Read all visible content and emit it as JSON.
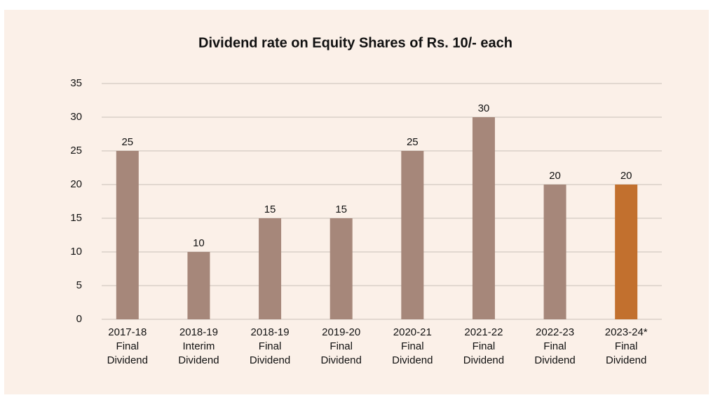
{
  "chart_data": {
    "type": "bar",
    "title": "Dividend rate on Equity Shares of Rs. 10/- each",
    "categories": [
      [
        "2017-18",
        "Final",
        "Dividend"
      ],
      [
        "2018-19",
        "Interim",
        "Dividend"
      ],
      [
        "2018-19",
        "Final",
        "Dividend"
      ],
      [
        "2019-20",
        "Final",
        "Dividend"
      ],
      [
        "2020-21",
        "Final",
        "Dividend"
      ],
      [
        "2021-22",
        "Final",
        "Dividend"
      ],
      [
        "2022-23",
        "Final",
        "Dividend"
      ],
      [
        "2023-24*",
        "Final",
        "Dividend"
      ]
    ],
    "values": [
      25,
      10,
      15,
      15,
      25,
      30,
      20,
      20
    ],
    "colors": [
      "#a6877a",
      "#a6877a",
      "#a6877a",
      "#a6877a",
      "#a6877a",
      "#a6877a",
      "#a6877a",
      "#c2702e"
    ],
    "ylim": [
      0,
      35
    ],
    "yticks": [
      0,
      5,
      10,
      15,
      20,
      25,
      30,
      35
    ],
    "grid": true
  }
}
